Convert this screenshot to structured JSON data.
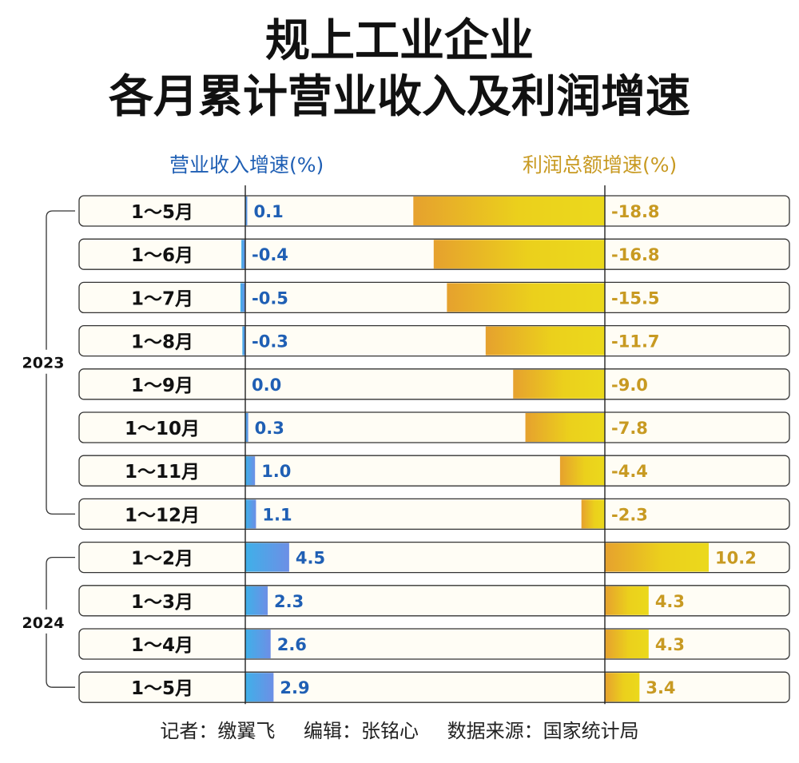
{
  "title": {
    "line1": "规上工业企业",
    "line2": "各月累计营业收入及利润增速"
  },
  "headers": {
    "revenue": "营业收入增速(%)",
    "profit": "利润总额增速(%)"
  },
  "footer": {
    "reporter": "记者：缴翼飞",
    "editor": "编辑：张铭心",
    "source": "数据来源：国家统计局"
  },
  "colors": {
    "revenue_bar": "#4a8fe0",
    "revenue_text": "#1f5fb4",
    "profit_bar": "#e9d21a",
    "profit_text": "#c89a22",
    "row_bg": "#fffdf5",
    "row_border": "#333333"
  },
  "chart_data": {
    "type": "bar",
    "title": "规上工业企业各月累计营业收入及利润增速",
    "groups": [
      {
        "label": "2023",
        "categories": [
          "1～5月",
          "1～6月",
          "1～7月",
          "1～8月",
          "1～9月",
          "1～10月",
          "1～11月",
          "1～12月"
        ]
      },
      {
        "label": "2024",
        "categories": [
          "1～2月",
          "1～3月",
          "1～4月",
          "1～5月"
        ]
      }
    ],
    "categories": [
      "1～5月",
      "1～6月",
      "1～7月",
      "1～8月",
      "1～9月",
      "1～10月",
      "1～11月",
      "1～12月",
      "1～2月",
      "1～3月",
      "1～4月",
      "1～5月"
    ],
    "series": [
      {
        "name": "营业收入增速(%)",
        "values": [
          0.1,
          -0.4,
          -0.5,
          -0.3,
          0.0,
          0.3,
          1.0,
          1.1,
          4.5,
          2.3,
          2.6,
          2.9
        ],
        "labels": [
          "0.1",
          "-0.4",
          "-0.5",
          "-0.3",
          "0.0",
          "0.3",
          "1.0",
          "1.1",
          "4.5",
          "2.3",
          "2.6",
          "2.9"
        ]
      },
      {
        "name": "利润总额增速(%)",
        "values": [
          -18.8,
          -16.8,
          -15.5,
          -11.7,
          -9.0,
          -7.8,
          -4.4,
          -2.3,
          10.2,
          4.3,
          4.3,
          3.4
        ],
        "labels": [
          "-18.8",
          "-16.8",
          "-15.5",
          "-11.7",
          "-9.0",
          "-7.8",
          "-4.4",
          "-2.3",
          "10.2",
          "4.3",
          "4.3",
          "3.4"
        ]
      }
    ]
  }
}
